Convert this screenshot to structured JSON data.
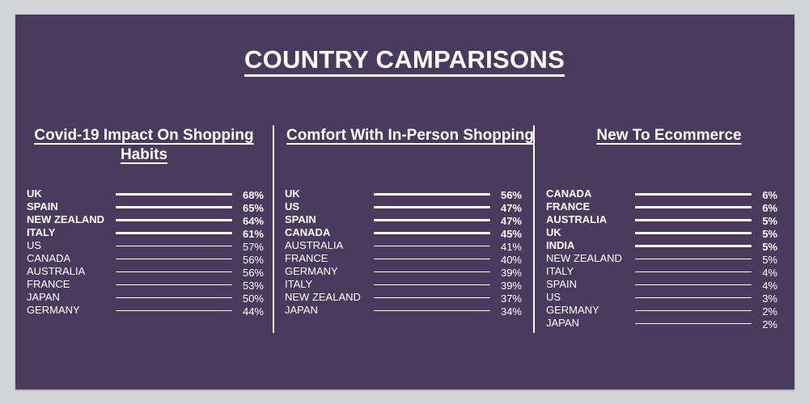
{
  "title": "COUNTRY CAMPARISONS",
  "chart_data": [
    {
      "type": "bar",
      "title": "Covid-19 Impact On Shopping Habits",
      "categories": [
        "UK",
        "SPAIN",
        "NEW ZEALAND",
        "ITALY",
        "US",
        "CANADA",
        "AUSTRALIA",
        "FRANCE",
        "JAPAN",
        "GERMANY"
      ],
      "values": [
        68,
        65,
        64,
        61,
        57,
        56,
        56,
        53,
        50,
        44
      ],
      "value_labels": [
        "68%",
        "65%",
        "64%",
        "61%",
        "57%",
        "56%",
        "56%",
        "53%",
        "50%",
        "44%"
      ],
      "highlighted_top": 4
    },
    {
      "type": "bar",
      "title": "Comfort With In-Person Shopping",
      "categories": [
        "UK",
        "US",
        "SPAIN",
        "CANADA",
        "AUSTRALIA",
        "FRANCE",
        "GERMANY",
        "ITALY",
        "NEW ZEALAND",
        "JAPAN"
      ],
      "values": [
        56,
        47,
        47,
        45,
        41,
        40,
        39,
        39,
        37,
        34
      ],
      "value_labels": [
        "56%",
        "47%",
        "47%",
        "45%",
        "41%",
        "40%",
        "39%",
        "39%",
        "37%",
        "34%"
      ],
      "highlighted_top": 4
    },
    {
      "type": "bar",
      "title": "New To Ecommerce",
      "categories": [
        "CANADA",
        "FRANCE",
        "AUSTRALIA",
        "UK",
        "INDIA",
        "NEW ZEALAND",
        "ITALY",
        "SPAIN",
        "US",
        "GERMANY",
        "JAPAN"
      ],
      "values": [
        6,
        6,
        5,
        5,
        5,
        5,
        4,
        4,
        3,
        2,
        2
      ],
      "value_labels": [
        "6%",
        "6%",
        "5%",
        "5%",
        "5%",
        "5%",
        "4%",
        "4%",
        "3%",
        "2%",
        "2%"
      ],
      "highlighted_top": 5
    }
  ],
  "colors": {
    "panel": "#4a3b5e",
    "page": "#d2d4d6",
    "text": "#ffffff"
  }
}
